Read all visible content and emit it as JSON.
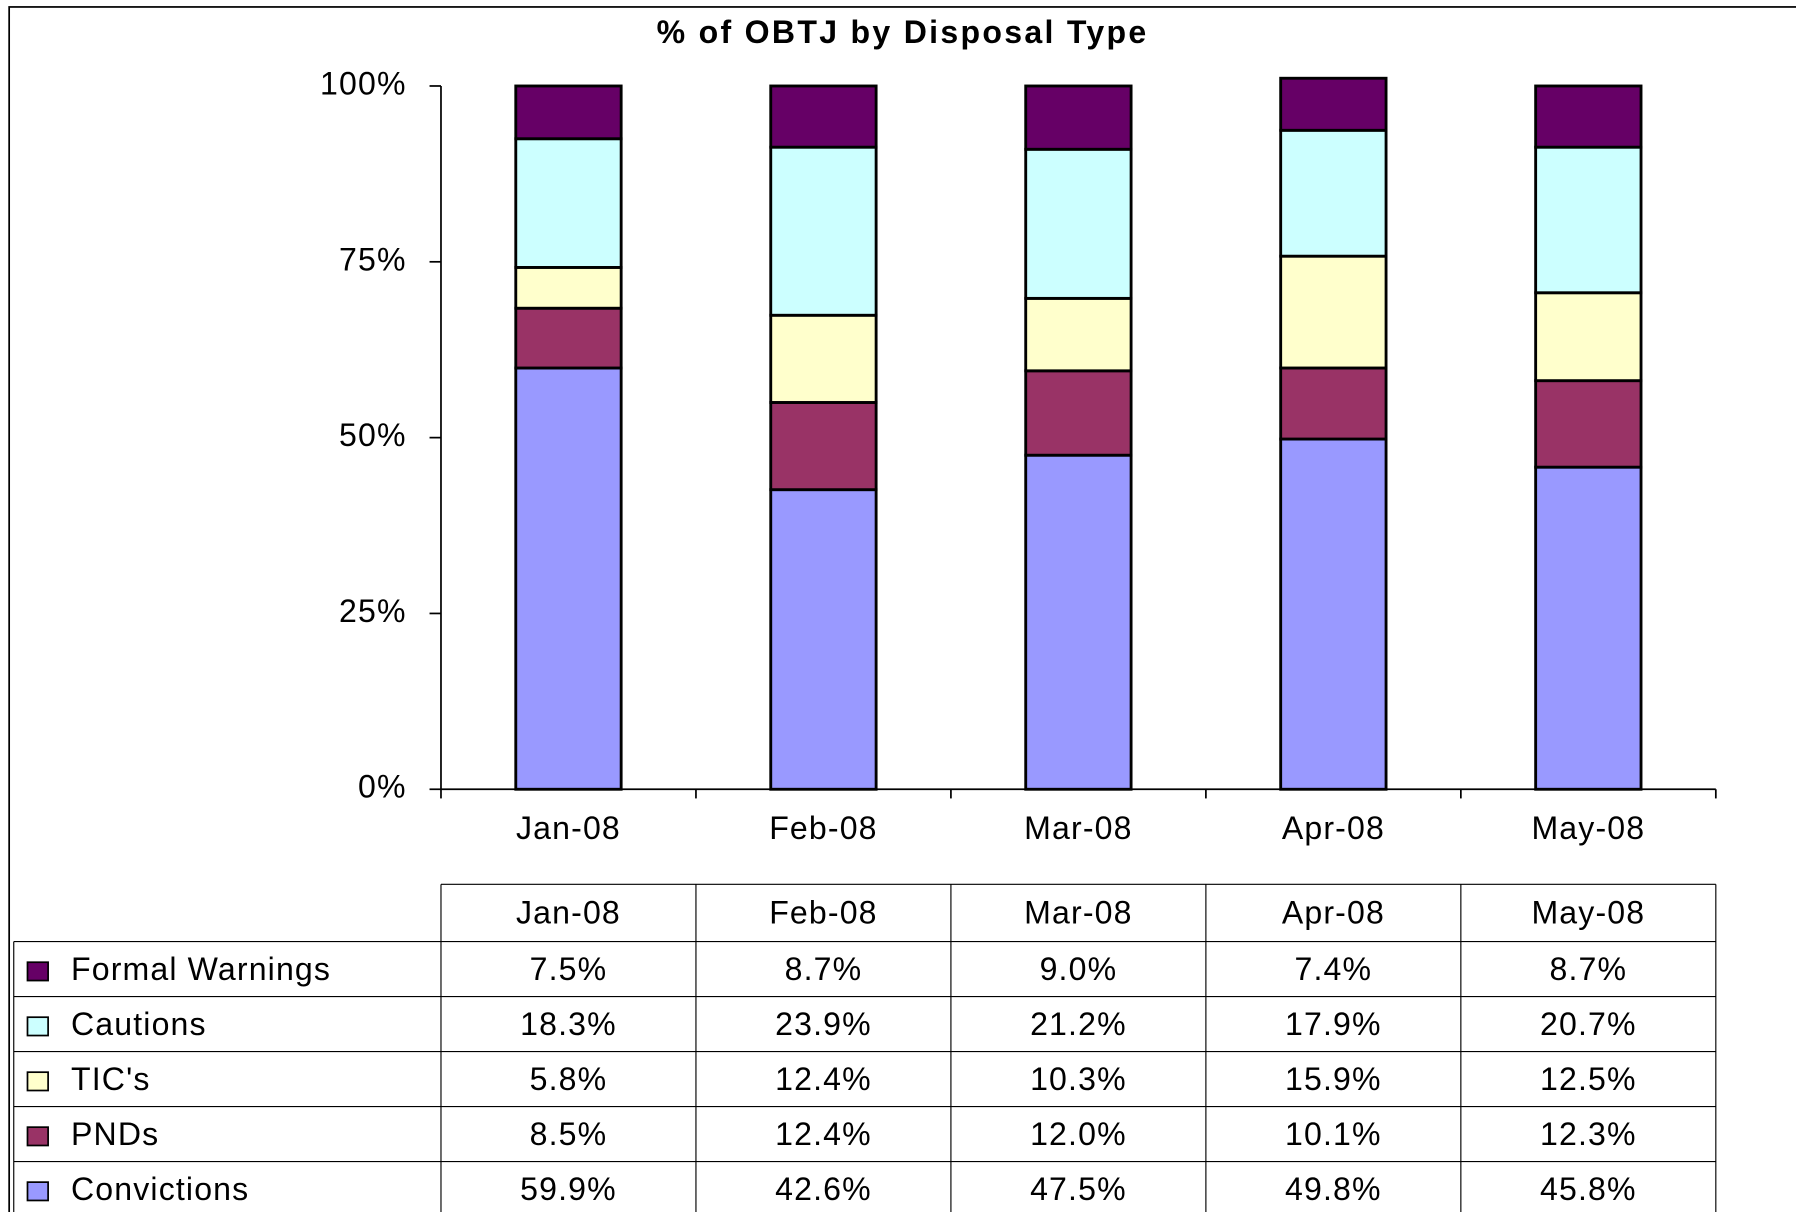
{
  "chart_data": {
    "type": "stacked_bar",
    "title": "% of OBTJ by Disposal Type",
    "categories": [
      "Jan-08",
      "Feb-08",
      "Mar-08",
      "Apr-08",
      "May-08"
    ],
    "series": [
      {
        "name": "Formal Warnings",
        "color": "#660066",
        "values": [
          7.5,
          8.7,
          9.0,
          7.4,
          8.7
        ],
        "value_labels": [
          "7.5%",
          "8.7%",
          "9.0%",
          "7.4%",
          "8.7%"
        ]
      },
      {
        "name": "Cautions",
        "color": "#ccffff",
        "values": [
          18.3,
          23.9,
          21.2,
          17.9,
          20.7
        ],
        "value_labels": [
          "18.3%",
          "23.9%",
          "21.2%",
          "17.9%",
          "20.7%"
        ]
      },
      {
        "name": "TIC's",
        "color": "#ffffcc",
        "values": [
          5.8,
          12.4,
          10.3,
          15.9,
          12.5
        ],
        "value_labels": [
          "5.8%",
          "12.4%",
          "10.3%",
          "15.9%",
          "12.5%"
        ]
      },
      {
        "name": "PNDs",
        "color": "#993366",
        "values": [
          8.5,
          12.4,
          12.0,
          10.1,
          12.3
        ],
        "value_labels": [
          "8.5%",
          "12.4%",
          "12.0%",
          "10.1%",
          "12.3%"
        ]
      },
      {
        "name": "Convictions",
        "color": "#9999ff",
        "values": [
          59.9,
          42.6,
          47.5,
          49.8,
          45.8
        ],
        "value_labels": [
          "59.9%",
          "42.6%",
          "47.5%",
          "49.8%",
          "45.8%"
        ]
      }
    ],
    "ylim": [
      0,
      100
    ],
    "yticks": [
      {
        "value": 0,
        "label": "0%"
      },
      {
        "value": 25,
        "label": "25%"
      },
      {
        "value": 50,
        "label": "50%"
      },
      {
        "value": 75,
        "label": "75%"
      },
      {
        "value": 100,
        "label": "100%"
      }
    ],
    "grid": false
  }
}
